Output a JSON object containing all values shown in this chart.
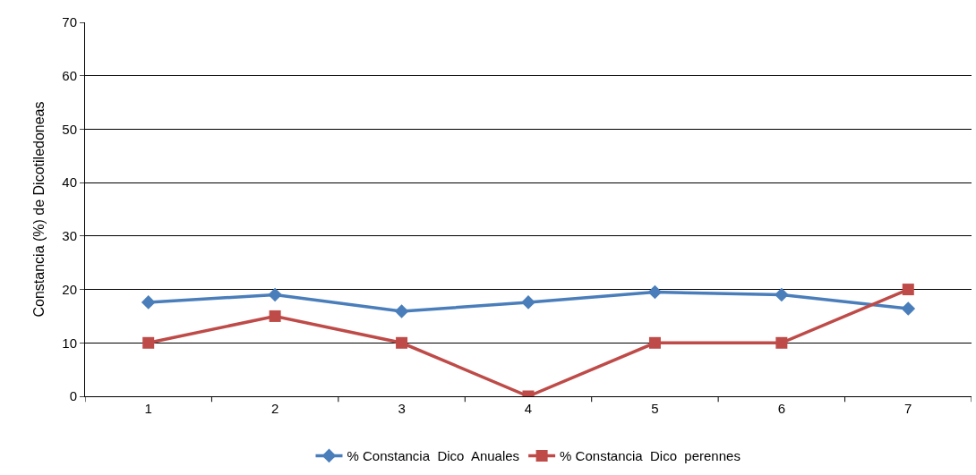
{
  "chart_data": {
    "type": "line",
    "ylabel": "Constancia (%) de Dicotiledoneas",
    "categories": [
      "1",
      "2",
      "3",
      "4",
      "5",
      "6",
      "7"
    ],
    "series": [
      {
        "name": "% Constancia  Dico  Anuales",
        "color": "#4a7ebb",
        "marker": "diamond",
        "values": [
          17.6,
          19,
          15.9,
          17.6,
          19.5,
          19,
          16.4
        ]
      },
      {
        "name": "% Constancia  Dico  perennes",
        "color": "#be4b48",
        "marker": "square",
        "values": [
          10,
          15,
          10,
          0,
          10,
          10,
          20
        ]
      }
    ],
    "ylim": [
      0,
      70
    ],
    "yticks": [
      0,
      10,
      20,
      30,
      40,
      50,
      60,
      70
    ],
    "grid": "y",
    "legend": "bottom"
  }
}
